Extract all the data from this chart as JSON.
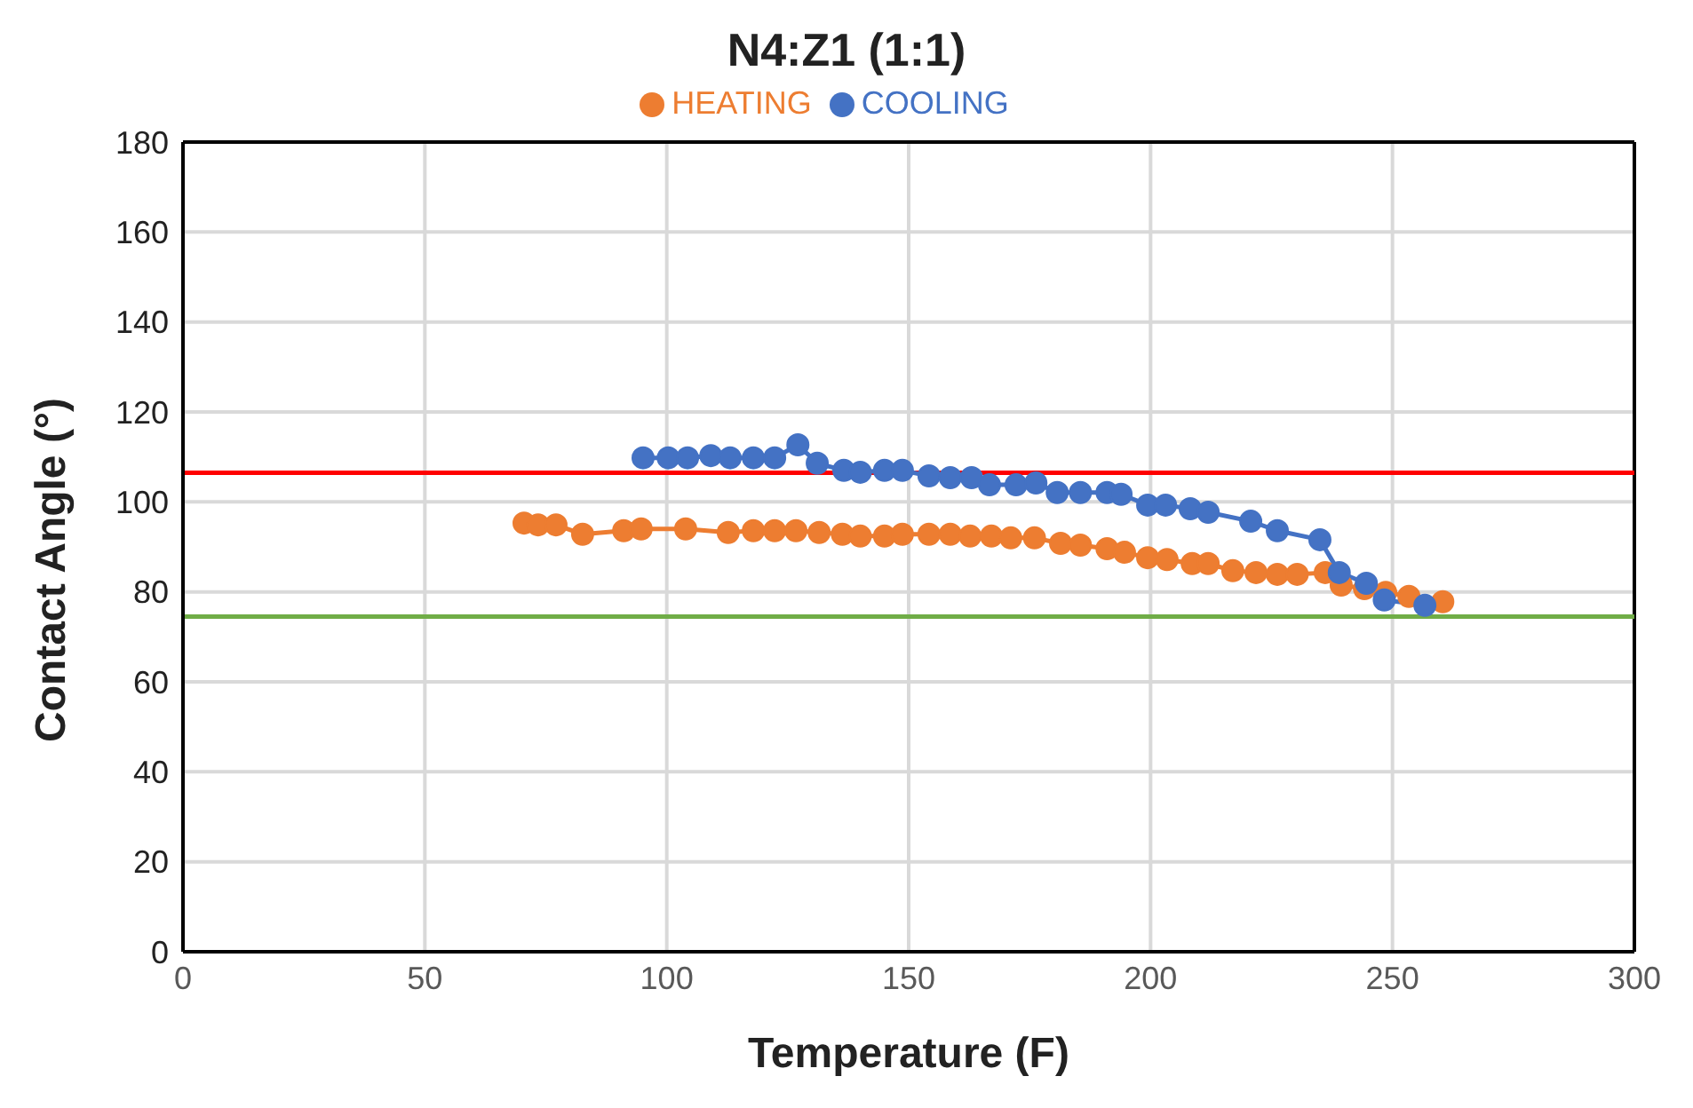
{
  "chart_data": {
    "type": "line",
    "title": "N4:Z1 (1:1)",
    "xlabel": "Temperature (F)",
    "ylabel": "Contact Angle (°)",
    "xlim": [
      0,
      300
    ],
    "xticks": [
      0,
      50,
      100,
      150,
      200,
      250,
      300
    ],
    "ylim": [
      0,
      180
    ],
    "yticks": [
      0,
      20,
      40,
      60,
      80,
      100,
      120,
      140,
      160,
      180
    ],
    "grid": true,
    "legend": "top",
    "marker": "circle",
    "line_style": "solid",
    "series": [
      {
        "name": "HEATING",
        "color": "#ed7d31",
        "x": [
          70.5,
          73.4,
          77.1,
          82.6,
          91.1,
          94.7,
          103.9,
          112.7,
          117.9,
          122.3,
          126.7,
          131.5,
          136.3,
          140,
          145,
          148.7,
          154.2,
          158.6,
          162.7,
          167.1,
          171.1,
          176,
          181.4,
          185.5,
          191,
          194.6,
          199.4,
          203.4,
          208.6,
          211.9,
          217,
          221.8,
          226.2,
          230.3,
          236.1,
          239.4,
          244.2,
          248.6,
          253.4,
          260.4
        ],
        "values": [
          95.3,
          94.9,
          94.9,
          92.8,
          93.6,
          94,
          94,
          93.2,
          93.6,
          93.6,
          93.6,
          93.2,
          92.8,
          92.4,
          92.4,
          92.8,
          92.8,
          92.8,
          92.4,
          92.4,
          92,
          92,
          90.8,
          90.4,
          89.6,
          88.8,
          87.6,
          87.2,
          86.3,
          86.3,
          84.7,
          84.3,
          83.9,
          83.9,
          84.3,
          81.5,
          80.7,
          79.9,
          79,
          77.8
        ]
      },
      {
        "name": "COOLING",
        "color": "#4472c4",
        "x": [
          95.1,
          100.3,
          104.3,
          109.1,
          113.1,
          117.9,
          122.3,
          127.1,
          131.1,
          136.6,
          140,
          145,
          148.7,
          154.2,
          158.6,
          163,
          166.7,
          172.2,
          176.3,
          180.7,
          185.5,
          191,
          193.9,
          199.4,
          203.1,
          208.2,
          211.9,
          220.7,
          226.2,
          235,
          239,
          244.6,
          248.3,
          256.7
        ],
        "values": [
          109.8,
          109.8,
          109.8,
          110.3,
          109.8,
          109.8,
          109.8,
          112.7,
          108.6,
          107,
          106.6,
          107,
          107,
          105.8,
          105.4,
          105.4,
          103.8,
          103.8,
          104.2,
          102.1,
          102.1,
          102.1,
          101.7,
          99.3,
          99.3,
          98.5,
          97.7,
          95.7,
          93.6,
          91.6,
          84.3,
          81.9,
          78.2,
          77
        ]
      }
    ],
    "ref_lines": [
      {
        "axis": "y",
        "value": 106.5,
        "color": "#ff0000"
      },
      {
        "axis": "y",
        "value": 74.5,
        "color": "#70ad47"
      }
    ]
  }
}
